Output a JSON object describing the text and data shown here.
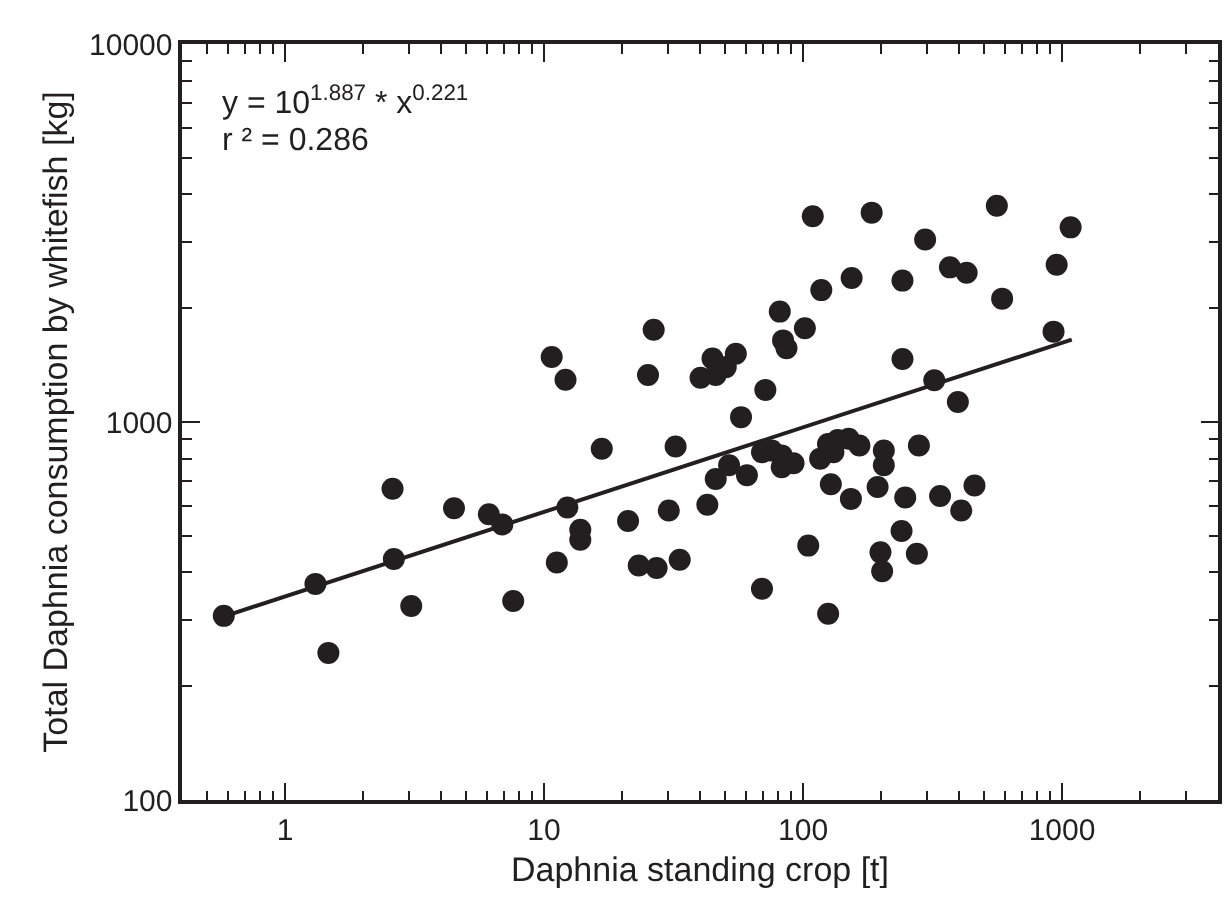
{
  "chart_data": {
    "type": "scatter",
    "xlabel": "Daphnia standing crop [t]",
    "ylabel": "Total Daphnia consumption by whitefish [kg]",
    "annotations": [
      "y = 10$^{1.887}$ * x$^{0.221}$",
      "r ² = 0.286"
    ],
    "log": "xy",
    "xlim": [
      0.4,
      4000
    ],
    "ylim": [
      100,
      10000
    ],
    "xticks": [
      {
        "value": 0.5,
        "label": null
      },
      {
        "value": 0.6,
        "label": null
      },
      {
        "value": 0.7,
        "label": null
      },
      {
        "value": 0.8,
        "label": null
      },
      {
        "value": 0.9,
        "label": null
      },
      1,
      {
        "value": 2,
        "label": null
      },
      {
        "value": 3,
        "label": null
      },
      {
        "value": 4,
        "label": null
      },
      {
        "value": 5,
        "label": null
      },
      {
        "value": 6,
        "label": null
      },
      {
        "value": 7,
        "label": null
      },
      {
        "value": 8,
        "label": null
      },
      {
        "value": 9,
        "label": null
      },
      10,
      {
        "value": 20,
        "label": null
      },
      {
        "value": 30,
        "label": null
      },
      {
        "value": 40,
        "label": null
      },
      {
        "value": 50,
        "label": null
      },
      {
        "value": 60,
        "label": null
      },
      {
        "value": 70,
        "label": null
      },
      {
        "value": 80,
        "label": null
      },
      {
        "value": 90,
        "label": null
      },
      100,
      {
        "value": 200,
        "label": null
      },
      {
        "value": 300,
        "label": null
      },
      {
        "value": 400,
        "label": null
      },
      {
        "value": 500,
        "label": null
      },
      {
        "value": 600,
        "label": null
      },
      {
        "value": 700,
        "label": null
      },
      {
        "value": 800,
        "label": null
      },
      {
        "value": 900,
        "label": null
      },
      1000,
      {
        "value": 2000,
        "label": null
      },
      {
        "value": 3000,
        "label": null
      }
    ],
    "yticks": [
      100,
      {
        "value": 200,
        "label": null
      },
      {
        "value": 300,
        "label": null
      },
      {
        "value": 400,
        "label": null
      },
      {
        "value": 500,
        "label": null
      },
      {
        "value": 600,
        "label": null
      },
      {
        "value": 700,
        "label": null
      },
      {
        "value": 800,
        "label": null
      },
      {
        "value": 900,
        "label": null
      },
      1000,
      {
        "value": 2000,
        "label": null
      },
      {
        "value": 3000,
        "label": null
      },
      {
        "value": 4000,
        "label": null
      },
      {
        "value": 5000,
        "label": null
      },
      {
        "value": 6000,
        "label": null
      },
      {
        "value": 7000,
        "label": null
      },
      {
        "value": 8000,
        "label": null
      },
      {
        "value": 9000,
        "label": null
      },
      10000
    ],
    "series": [
      {
        "color": "#231f20",
        "marker": "circle",
        "x": [
          0.58,
          1.31,
          1.47,
          2.6,
          2.63,
          3.07,
          4.49,
          6.12,
          6.9,
          7.6,
          11.2,
          12.3,
          13.8,
          13.8,
          16.7,
          21.1,
          23.2,
          27.2,
          32.2,
          30.3,
          33.4,
          42.7,
          46,
          10.7,
          12.1,
          26.5,
          25.2,
          40.2,
          44.7,
          46,
          50.3,
          55,
          57.6,
          71.5,
          81.3,
          83.7,
          86.3,
          101.6,
          109,
          117.6,
          154,
          184,
          242,
          242,
          296,
          321,
          369,
          396,
          428,
          560,
          587,
          927,
          953,
          1079,
          51.8,
          60.7,
          69.4,
          75.7,
          82.7,
          82.7,
          91.9,
          104.7,
          69.4,
          116.4,
          124.8,
          136,
          150,
          165,
          131,
          128,
          153,
          194,
          205,
          205,
          280,
          199,
          202,
          125,
          240,
          248,
          275,
          338,
          408,
          459
        ],
        "values": [
          307,
          373,
          245,
          666,
          434,
          326,
          591,
          570,
          536,
          336,
          425,
          594,
          519,
          488,
          850,
          547,
          417,
          411,
          861,
          583,
          432,
          604,
          707,
          1486,
          1293,
          1755,
          1331,
          1309,
          1473,
          1331,
          1397,
          1516,
          1030,
          1216,
          1959,
          1644,
          1567,
          1770,
          3500,
          2233,
          2404,
          3580,
          2366,
          1468,
          3041,
          1289,
          2565,
          1130,
          2483,
          3733,
          2120,
          1734,
          2607,
          3273,
          768,
          723,
          832,
          840,
          816,
          759,
          778,
          471,
          362,
          800,
          875,
          896,
          903,
          867,
          832,
          684,
          626,
          673,
          840,
          768,
          867,
          452,
          403,
          311,
          515,
          631,
          448,
          637,
          583,
          679
        ]
      },
      {
        "type": "line",
        "color": "#231f20",
        "marker": "none",
        "line_style": "solid",
        "x": [
          0.59,
          1090
        ],
        "values": [
          307,
          1652
        ]
      }
    ]
  }
}
